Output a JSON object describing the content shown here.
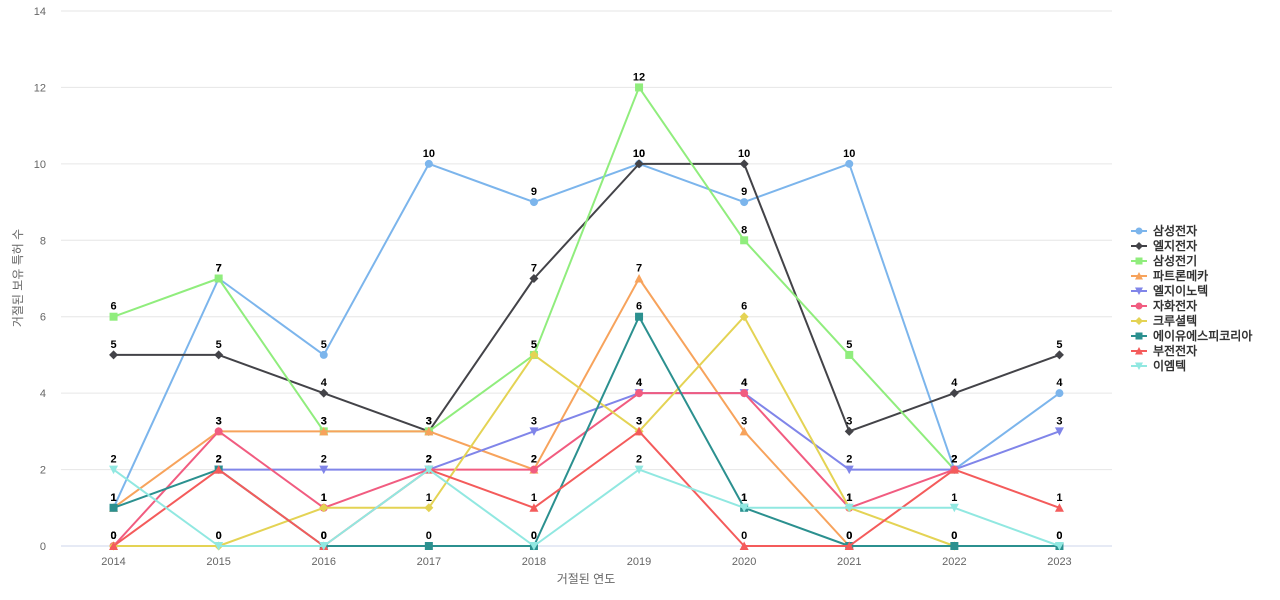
{
  "chart_data": {
    "type": "line",
    "title": "",
    "xlabel": "거절된 연도",
    "ylabel": "거절된 보유 특허 수",
    "ylim": [
      0,
      14
    ],
    "yticks": [
      0,
      2,
      4,
      6,
      8,
      10,
      12,
      14
    ],
    "categories": [
      "2014",
      "2015",
      "2016",
      "2017",
      "2018",
      "2019",
      "2020",
      "2021",
      "2022",
      "2023"
    ],
    "legend_position": "right",
    "series": [
      {
        "name": "삼성전자",
        "color": "#7cb5ec",
        "marker": "circle",
        "values": [
          1,
          7,
          5,
          10,
          9,
          10,
          9,
          10,
          2,
          4
        ]
      },
      {
        "name": "엘지전자",
        "color": "#434348",
        "marker": "diamond",
        "values": [
          5,
          5,
          4,
          3,
          7,
          10,
          10,
          3,
          4,
          5
        ]
      },
      {
        "name": "삼성전기",
        "color": "#90ed7d",
        "marker": "square",
        "values": [
          6,
          7,
          3,
          3,
          5,
          12,
          8,
          5,
          2,
          null
        ]
      },
      {
        "name": "파트론메카",
        "color": "#f7a35c",
        "marker": "triangle",
        "values": [
          1,
          3,
          3,
          3,
          2,
          7,
          3,
          0,
          null,
          null
        ]
      },
      {
        "name": "엘지이노텍",
        "color": "#8085e9",
        "marker": "triangle-down",
        "values": [
          null,
          2,
          2,
          2,
          3,
          4,
          4,
          2,
          2,
          3
        ]
      },
      {
        "name": "자화전자",
        "color": "#f15c80",
        "marker": "circle",
        "values": [
          0,
          3,
          1,
          2,
          2,
          4,
          4,
          1,
          2,
          null
        ]
      },
      {
        "name": "크루셜텍",
        "color": "#e4d354",
        "marker": "diamond",
        "values": [
          0,
          0,
          1,
          1,
          5,
          3,
          6,
          1,
          0,
          null
        ]
      },
      {
        "name": "에이유에스피코리아",
        "color": "#2b908f",
        "marker": "square",
        "values": [
          1,
          2,
          0,
          0,
          0,
          6,
          1,
          0,
          0,
          0
        ]
      },
      {
        "name": "부전전자",
        "color": "#f45b5b",
        "marker": "triangle",
        "values": [
          0,
          2,
          0,
          2,
          1,
          3,
          0,
          0,
          2,
          1
        ]
      },
      {
        "name": "이엠텍",
        "color": "#91e8e1",
        "marker": "triangle-down",
        "values": [
          2,
          0,
          0,
          2,
          0,
          2,
          1,
          1,
          1,
          0
        ]
      }
    ]
  }
}
